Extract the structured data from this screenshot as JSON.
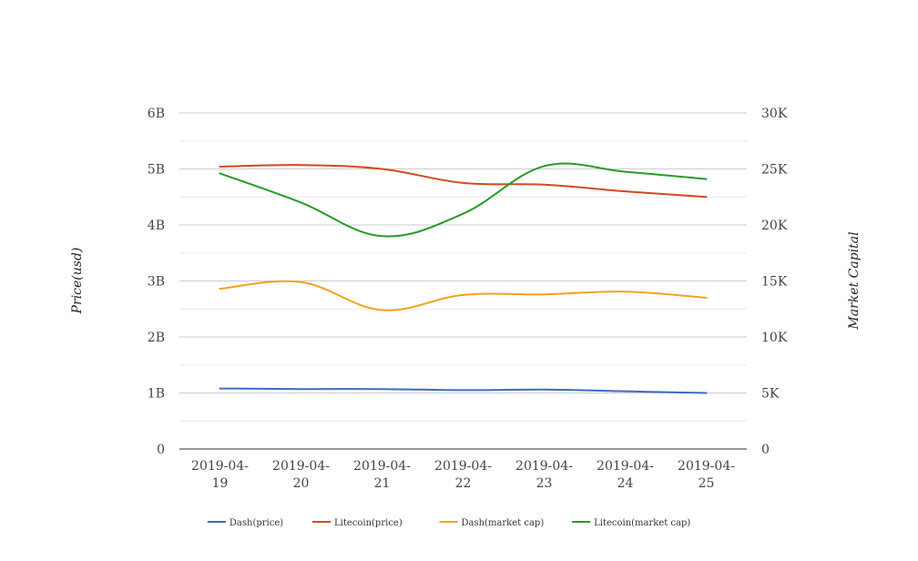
{
  "chart_data": {
    "type": "line",
    "categories": [
      [
        "2019-04-",
        "19"
      ],
      [
        "2019-04-",
        "20"
      ],
      [
        "2019-04-",
        "21"
      ],
      [
        "2019-04-",
        "22"
      ],
      [
        "2019-04-",
        "23"
      ],
      [
        "2019-04-",
        "24"
      ],
      [
        "2019-04-",
        "25"
      ]
    ],
    "y_left": {
      "label": "Price(usd)",
      "ylim": [
        0,
        6000000000
      ],
      "ticks": [
        0,
        1000000000,
        2000000000,
        3000000000,
        4000000000,
        5000000000,
        6000000000
      ],
      "tick_labels": [
        "0",
        "1B",
        "2B",
        "3B",
        "4B",
        "5B",
        "6B"
      ]
    },
    "y_right": {
      "label": "Market Capital",
      "ylim": [
        0,
        30000
      ],
      "ticks": [
        0,
        5000,
        10000,
        15000,
        20000,
        25000,
        30000
      ],
      "tick_labels": [
        "0",
        "5K",
        "10K",
        "15K",
        "20K",
        "25K",
        "30K"
      ]
    },
    "series": [
      {
        "name": "Dash(price)",
        "color": "#3b6cc1",
        "axis": "left",
        "values": [
          1080000000,
          1070000000,
          1070000000,
          1050000000,
          1060000000,
          1030000000,
          1000000000
        ]
      },
      {
        "name": "Litecoin(price)",
        "color": "#d24a1e",
        "axis": "left",
        "values": [
          5040000000,
          5070000000,
          5000000000,
          4750000000,
          4720000000,
          4600000000,
          4500000000
        ]
      },
      {
        "name": "Dash(market cap)",
        "color": "#f2a21c",
        "axis": "left",
        "values": [
          2860000000,
          2980000000,
          2480000000,
          2750000000,
          2760000000,
          2810000000,
          2700000000
        ]
      },
      {
        "name": "Litecoin(market cap)",
        "color": "#2a9a2a",
        "axis": "left",
        "values": [
          4920000000,
          4400000000,
          3800000000,
          4200000000,
          5050000000,
          4950000000,
          4820000000
        ]
      }
    ],
    "grid": true,
    "legend_position": "bottom"
  }
}
